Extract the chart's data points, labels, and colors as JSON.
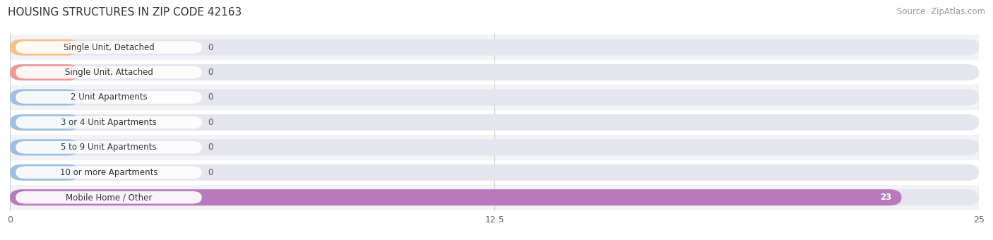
{
  "title": "HOUSING STRUCTURES IN ZIP CODE 42163",
  "source": "Source: ZipAtlas.com",
  "categories": [
    "Single Unit, Detached",
    "Single Unit, Attached",
    "2 Unit Apartments",
    "3 or 4 Unit Apartments",
    "5 to 9 Unit Apartments",
    "10 or more Apartments",
    "Mobile Home / Other"
  ],
  "values": [
    0,
    0,
    0,
    0,
    0,
    0,
    23
  ],
  "bar_colors": [
    "#f5c18a",
    "#f0989a",
    "#9dbfe0",
    "#9dbfe0",
    "#9dbfe0",
    "#9dbfe0",
    "#b87abd"
  ],
  "bar_bg_color": "#e5e5ee",
  "xlim": [
    0,
    25
  ],
  "xticks": [
    0,
    12.5,
    25
  ],
  "background_color": "#ffffff",
  "title_fontsize": 11,
  "label_fontsize": 8.5,
  "source_fontsize": 8.5,
  "bar_height": 0.65,
  "row_bg_colors": [
    "#f2f2f7",
    "#ffffff"
  ],
  "value_label_0_color": "#555555",
  "value_label_color": "#ffffff",
  "label_text_color": "#333333"
}
